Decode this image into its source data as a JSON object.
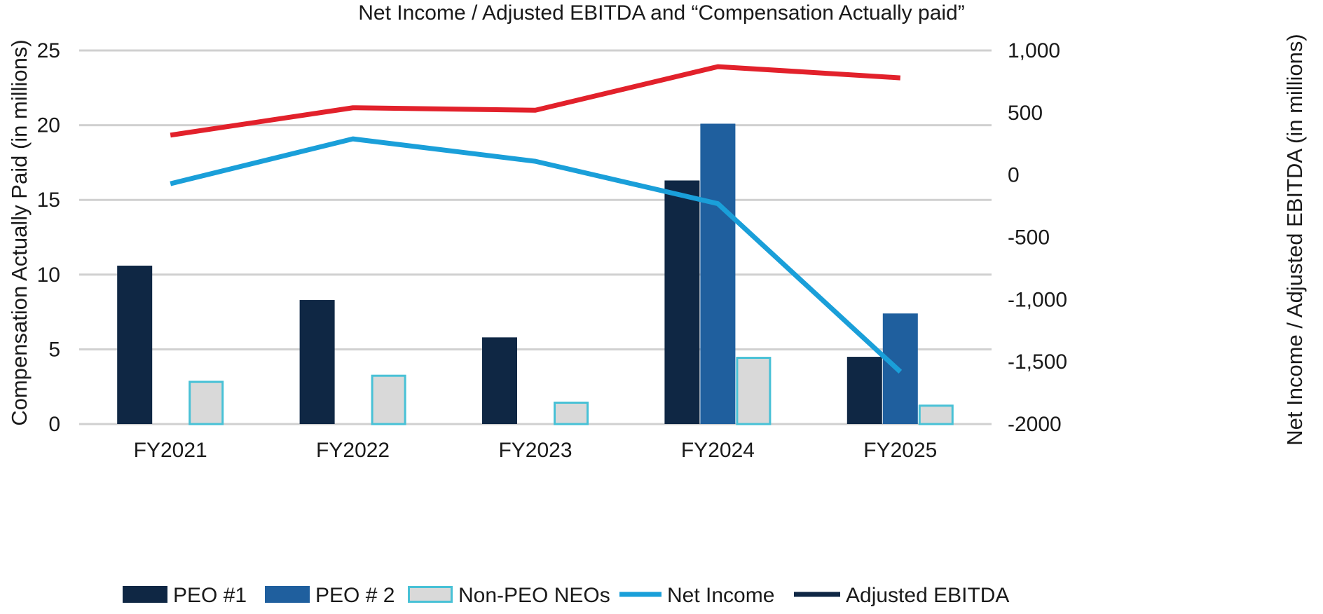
{
  "chart_data": {
    "type": "bar",
    "title": "Net Income / Adjusted EBITDA and “Compensation Actually paid”",
    "categories": [
      "FY2021",
      "FY2022",
      "FY2023",
      "FY2024",
      "FY2025"
    ],
    "ylabel": "Compensation Actually Paid (in millions)",
    "y2label": "Net Income / Adjusted EBITDA (in millions)",
    "ylim": [
      0,
      25
    ],
    "y2lim": [
      -2000,
      1000
    ],
    "yticks": [
      "0",
      "5",
      "10",
      "15",
      "20",
      "25"
    ],
    "y2ticks": [
      "-2000",
      "-1,500",
      "-1,000",
      "-500",
      "0",
      "500",
      "1,000"
    ],
    "grid": true,
    "legend_position": "bottom",
    "bar_series": [
      {
        "name": "PEO #1",
        "color": "#0f2744",
        "values": [
          10.6,
          8.3,
          5.8,
          16.3,
          4.5
        ]
      },
      {
        "name": "PEO # 2",
        "color": "#1f5f9e",
        "values": [
          null,
          null,
          null,
          20.1,
          7.4
        ]
      },
      {
        "name": "Non-PEO NEOs",
        "color": "#d9d9d9",
        "border": "#48c1d6",
        "values": [
          2.9,
          3.3,
          1.5,
          4.5,
          1.3
        ]
      }
    ],
    "line_series": [
      {
        "name": "Net Income",
        "color": "#1a9fd9",
        "values": [
          -70,
          290,
          110,
          -230,
          -1580
        ]
      },
      {
        "name": "Adjusted EBITDA",
        "color": "#e2212b",
        "legend_color": "#0f2744",
        "values": [
          320,
          540,
          520,
          870,
          780
        ]
      }
    ]
  }
}
